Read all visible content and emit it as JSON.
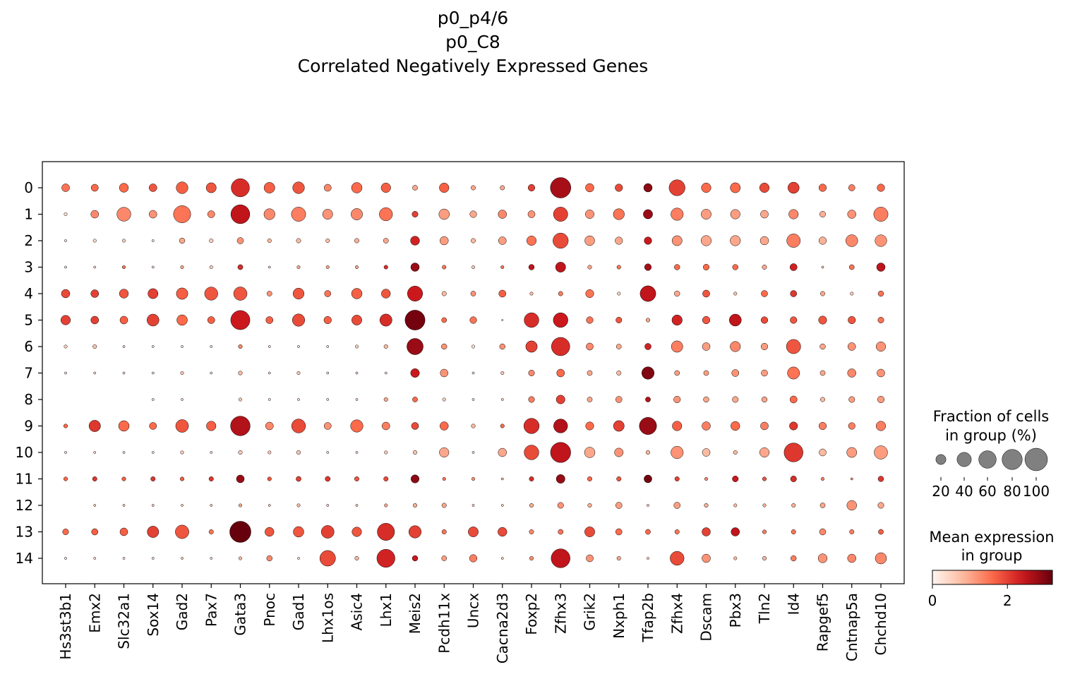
{
  "chart_data": {
    "type": "dotplot",
    "title_lines": [
      "p0_p4/6",
      "p0_C8",
      "Correlated Negatively Expressed Genes"
    ],
    "genes": [
      "Hs3st3b1",
      "Emx2",
      "Slc32a1",
      "Sox14",
      "Gad2",
      "Pax7",
      "Gata3",
      "Pnoc",
      "Gad1",
      "Lhx1os",
      "Asic4",
      "Lhx1",
      "Meis2",
      "Pcdh11x",
      "Uncx",
      "Cacna2d3",
      "Foxp2",
      "Zfhx3",
      "Grik2",
      "Nxph1",
      "Tfap2b",
      "Zfhx4",
      "Dscam",
      "Pbx3",
      "Tln2",
      "Id4",
      "Rapgef5",
      "Cntnap5a",
      "Chchd10"
    ],
    "groups": [
      "0",
      "1",
      "2",
      "3",
      "4",
      "5",
      "6",
      "7",
      "8",
      "9",
      "10",
      "11",
      "12",
      "13",
      "14"
    ],
    "fraction_pct": [
      [
        12,
        10,
        16,
        12,
        27,
        20,
        65,
        23,
        27,
        10,
        22,
        18,
        5,
        18,
        4,
        4,
        9,
        82,
        14,
        11,
        14,
        50,
        18,
        20,
        18,
        25,
        11,
        8,
        11
      ],
      [
        2,
        12,
        38,
        12,
        58,
        10,
        70,
        24,
        40,
        20,
        26,
        34,
        7,
        22,
        9,
        14,
        10,
        40,
        15,
        24,
        17,
        30,
        20,
        18,
        12,
        18,
        7,
        14,
        40
      ],
      [
        1,
        2,
        2,
        1,
        6,
        3,
        8,
        3,
        4,
        3,
        4,
        5,
        16,
        14,
        4,
        12,
        18,
        46,
        19,
        11,
        11,
        20,
        21,
        21,
        14,
        36,
        11,
        28,
        27
      ],
      [
        1,
        1,
        2,
        1,
        2,
        2,
        5,
        1,
        2,
        2,
        2,
        3,
        14,
        3,
        2,
        2,
        6,
        20,
        3,
        3,
        9,
        6,
        7,
        6,
        4,
        10,
        1,
        5,
        14
      ],
      [
        14,
        12,
        16,
        20,
        26,
        34,
        35,
        5,
        24,
        8,
        22,
        16,
        45,
        4,
        5,
        10,
        2,
        4,
        13,
        2,
        48,
        6,
        10,
        2,
        8,
        8,
        4,
        2,
        6
      ],
      [
        18,
        12,
        12,
        28,
        22,
        10,
        72,
        10,
        30,
        11,
        20,
        29,
        78,
        5,
        9,
        0.5,
        42,
        42,
        9,
        7,
        3,
        21,
        11,
        28,
        9,
        9,
        13,
        11,
        7
      ],
      [
        2,
        3,
        1,
        1,
        1,
        1,
        3,
        1,
        1,
        1,
        2,
        3,
        52,
        6,
        2,
        6,
        26,
        66,
        10,
        5,
        8,
        26,
        12,
        21,
        9,
        40,
        6,
        12,
        18
      ],
      [
        1,
        1,
        1,
        1,
        2,
        1,
        3,
        1,
        2,
        1,
        1,
        1,
        15,
        12,
        1,
        2,
        7,
        12,
        5,
        4,
        30,
        5,
        5,
        10,
        8,
        29,
        5,
        14,
        12
      ],
      [
        0,
        0,
        0,
        1,
        1,
        0,
        2,
        1,
        1,
        1,
        1,
        3,
        5,
        2,
        1,
        1,
        7,
        15,
        5,
        8,
        5,
        9,
        6,
        7,
        6,
        10,
        4,
        7,
        9
      ],
      [
        3,
        26,
        22,
        10,
        32,
        18,
        75,
        12,
        38,
        10,
        30,
        12,
        10,
        14,
        3,
        3,
        46,
        38,
        13,
        23,
        58,
        18,
        14,
        16,
        12,
        13,
        11,
        9,
        18
      ],
      [
        1,
        1,
        1,
        1,
        2,
        1,
        3,
        2,
        3,
        1,
        1,
        2,
        3,
        18,
        1,
        14,
        42,
        80,
        22,
        15,
        3,
        30,
        12,
        3,
        18,
        70,
        10,
        20,
        35
      ],
      [
        3,
        4,
        3,
        4,
        3,
        4,
        12,
        3,
        5,
        5,
        4,
        4,
        13,
        2,
        2,
        1,
        4,
        15,
        4,
        4,
        12,
        4,
        2,
        7,
        3,
        7,
        2,
        1,
        6
      ],
      [
        0,
        1,
        1,
        1,
        1,
        1,
        2,
        1,
        2,
        1,
        1,
        2,
        3,
        4,
        1,
        1,
        3,
        7,
        3,
        8,
        1,
        8,
        3,
        2,
        2,
        3,
        5,
        19,
        7
      ],
      [
        7,
        8,
        12,
        26,
        36,
        4,
        88,
        16,
        22,
        32,
        18,
        58,
        30,
        4,
        20,
        16,
        4,
        5,
        20,
        8,
        5,
        4,
        14,
        14,
        3,
        4,
        8,
        4,
        5
      ],
      [
        1,
        1,
        1,
        1,
        1,
        1,
        2,
        6,
        1,
        48,
        3,
        64,
        6,
        5,
        11,
        1,
        3,
        70,
        10,
        3,
        1,
        38,
        14,
        2,
        3,
        6,
        16,
        14,
        25
      ]
    ],
    "mean_expr": [
      [
        1.5,
        1.6,
        1.6,
        1.8,
        1.7,
        1.8,
        2.2,
        1.7,
        1.8,
        1.3,
        1.6,
        1.7,
        1.0,
        1.7,
        1.0,
        1.0,
        2.0,
        2.7,
        1.6,
        1.9,
        2.9,
        2.0,
        1.6,
        1.6,
        1.9,
        2.0,
        1.6,
        1.4,
        1.6
      ],
      [
        0.3,
        1.3,
        1.3,
        1.2,
        1.5,
        1.3,
        2.5,
        1.3,
        1.4,
        1.2,
        1.3,
        1.5,
        2.0,
        1.1,
        1.0,
        1.3,
        1.2,
        2.0,
        1.2,
        1.5,
        2.8,
        1.4,
        1.1,
        1.1,
        1.0,
        1.3,
        0.9,
        1.2,
        1.4
      ],
      [
        0.3,
        0.4,
        0.5,
        0.3,
        1.0,
        0.5,
        1.2,
        0.8,
        0.8,
        0.7,
        0.9,
        1.0,
        2.3,
        1.1,
        0.8,
        1.1,
        1.5,
        1.9,
        1.1,
        1.0,
        2.4,
        1.2,
        1.0,
        1.0,
        1.0,
        1.4,
        0.9,
        1.3,
        1.2
      ],
      [
        0.3,
        0.3,
        1.5,
        0.3,
        1.0,
        0.5,
        2.2,
        0.4,
        1.0,
        1.0,
        1.0,
        2.2,
        2.8,
        1.5,
        0.5,
        1.5,
        2.5,
        2.5,
        1.0,
        1.5,
        2.7,
        1.6,
        1.6,
        1.6,
        1.0,
        2.3,
        0.5,
        1.5,
        2.5
      ],
      [
        1.9,
        2.0,
        1.8,
        2.0,
        1.7,
        1.8,
        1.8,
        1.2,
        1.8,
        1.5,
        1.7,
        1.8,
        2.4,
        0.8,
        1.2,
        1.7,
        0.8,
        1.4,
        1.5,
        0.5,
        2.5,
        1.0,
        1.8,
        0.7,
        1.6,
        2.1,
        1.0,
        0.6,
        1.5
      ],
      [
        2.0,
        2.0,
        1.7,
        2.0,
        1.6,
        1.7,
        2.4,
        1.7,
        1.9,
        1.7,
        1.9,
        2.2,
        3.1,
        1.6,
        1.5,
        0.3,
        2.2,
        2.4,
        1.5,
        1.8,
        1.0,
        2.3,
        1.8,
        2.5,
        1.9,
        1.8,
        1.8,
        1.8,
        1.5
      ],
      [
        0.5,
        0.7,
        0.3,
        0.3,
        0.3,
        0.3,
        1.3,
        0.3,
        0.3,
        0.3,
        0.5,
        0.8,
        2.8,
        1.2,
        0.3,
        1.2,
        2.0,
        2.2,
        1.3,
        1.0,
        2.3,
        1.4,
        1.1,
        1.3,
        1.1,
        1.8,
        1.0,
        1.2,
        1.2
      ],
      [
        0.3,
        0.3,
        0.3,
        0.3,
        0.6,
        0.3,
        0.8,
        0.3,
        0.6,
        0.3,
        0.3,
        0.3,
        2.4,
        1.2,
        0.3,
        0.6,
        1.3,
        1.6,
        1.0,
        0.8,
        3.0,
        1.1,
        1.1,
        1.2,
        1.1,
        1.5,
        1.0,
        1.3,
        1.2
      ],
      [
        0.3,
        0.3,
        0.3,
        0.3,
        0.3,
        0.3,
        0.6,
        0.3,
        0.3,
        0.3,
        0.3,
        1.0,
        1.6,
        0.5,
        0.3,
        0.5,
        1.4,
        2.0,
        1.0,
        1.2,
        2.6,
        1.2,
        1.0,
        1.0,
        1.0,
        1.6,
        0.8,
        1.1,
        1.1
      ],
      [
        1.6,
        2.1,
        1.6,
        1.6,
        1.8,
        1.7,
        2.6,
        1.3,
        1.9,
        1.2,
        1.6,
        1.4,
        1.9,
        1.6,
        0.8,
        1.6,
        2.2,
        2.6,
        1.6,
        2.0,
        2.8,
        1.7,
        1.4,
        1.6,
        1.4,
        2.1,
        1.4,
        1.4,
        1.4
      ],
      [
        0.3,
        0.3,
        0.3,
        0.3,
        0.6,
        0.3,
        0.6,
        0.6,
        0.6,
        0.3,
        0.3,
        0.6,
        0.6,
        1.0,
        0.3,
        1.0,
        1.9,
        2.5,
        1.0,
        1.2,
        0.8,
        1.2,
        0.8,
        0.8,
        1.0,
        2.1,
        0.8,
        1.1,
        1.1
      ],
      [
        1.6,
        2.1,
        1.7,
        2.1,
        1.7,
        2.1,
        2.8,
        1.8,
        2.0,
        2.1,
        1.8,
        1.9,
        2.9,
        1.5,
        1.2,
        0.8,
        2.2,
        2.8,
        1.6,
        1.8,
        3.1,
        2.0,
        1.3,
        2.4,
        1.8,
        2.2,
        1.4,
        1.2,
        2.1
      ],
      [
        0.3,
        0.5,
        0.5,
        0.5,
        0.5,
        0.5,
        1.0,
        0.5,
        0.8,
        0.5,
        0.5,
        1.0,
        0.9,
        1.0,
        0.5,
        0.5,
        0.9,
        1.2,
        0.9,
        1.1,
        0.5,
        1.1,
        0.9,
        0.8,
        0.9,
        0.9,
        1.0,
        1.2,
        1.0
      ],
      [
        1.6,
        1.7,
        1.7,
        2.0,
        1.8,
        1.5,
        3.2,
        1.8,
        1.8,
        2.0,
        1.8,
        2.2,
        2.0,
        1.5,
        1.9,
        1.9,
        1.3,
        1.5,
        1.9,
        1.6,
        1.6,
        1.5,
        2.0,
        2.5,
        1.4,
        1.5,
        1.3,
        1.4,
        1.7
      ],
      [
        0.3,
        0.3,
        0.3,
        0.3,
        0.5,
        0.3,
        0.8,
        1.3,
        0.3,
        1.9,
        0.8,
        2.3,
        2.4,
        1.1,
        1.4,
        0.5,
        1.2,
        2.5,
        1.2,
        1.0,
        0.5,
        1.9,
        1.2,
        0.8,
        0.8,
        1.4,
        1.2,
        1.3,
        1.3
      ]
    ],
    "size_legend": {
      "title_lines": [
        "Fraction of cells",
        "in group (%)"
      ],
      "values": [
        20,
        40,
        60,
        80,
        100
      ]
    },
    "color_legend": {
      "title_lines": [
        "Mean expression",
        "in group"
      ],
      "ticks": [
        0,
        2
      ],
      "vmax": 3.2,
      "colormap": "Reds"
    },
    "dot_edge_color": "#000000",
    "legend_dot_color": "#808080",
    "colors": [
      "#fff5f0",
      "#fcbba1",
      "#fb6a4a",
      "#cb181d",
      "#67000d"
    ]
  }
}
